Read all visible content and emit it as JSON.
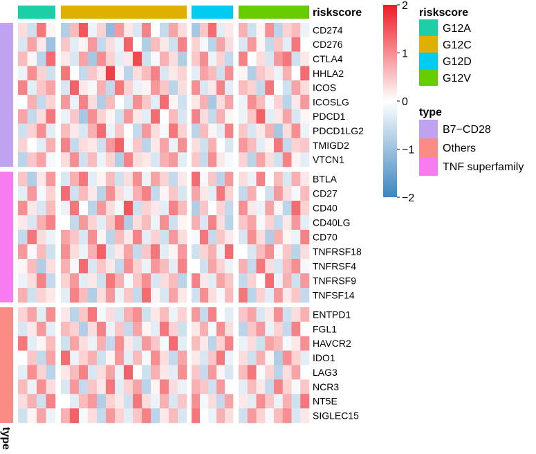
{
  "chart_data": {
    "type": "heatmap",
    "title": "",
    "column_annotation": {
      "name": "riskscore",
      "groups": [
        {
          "label": "G12A",
          "color": "#1ccfa6",
          "n_columns": 4
        },
        {
          "label": "G12C",
          "color": "#e0b000",
          "n_columns": 14
        },
        {
          "label": "G12D",
          "color": "#00ccf0",
          "n_columns": 5
        },
        {
          "label": "G12V",
          "color": "#66cc00",
          "n_columns": 8
        }
      ]
    },
    "row_annotation": {
      "name": "type",
      "groups": [
        {
          "label": "B7−CD28",
          "color": "#bfa2f0",
          "genes": [
            "CD274",
            "CD276",
            "CTLA4",
            "HHLA2",
            "ICOS",
            "ICOSLG",
            "PDCD1",
            "PDCD1LG2",
            "TMIGD2",
            "VTCN1"
          ]
        },
        {
          "label": "TNF superfamily",
          "color": "#f77cef",
          "genes": [
            "BTLA",
            "CD27",
            "CD40",
            "CD40LG",
            "CD70",
            "TNFRSF18",
            "TNFRSF4",
            "TNFRSF9",
            "TNFSF14"
          ]
        },
        {
          "label": "Others",
          "color": "#fa8c84",
          "genes": [
            "ENTPD1",
            "FGL1",
            "HAVCR2",
            "IDO1",
            "LAG3",
            "NCR3",
            "NT5E",
            "SIGLEC15"
          ]
        }
      ],
      "legend_order": [
        "B7−CD28",
        "Others",
        "TNF superfamily"
      ]
    },
    "colorbar": {
      "min": -2,
      "max": 2,
      "ticks": [
        2,
        1,
        0,
        -1,
        -2
      ],
      "tick_labels": [
        "2",
        "1",
        "0",
        "−1",
        "−2"
      ],
      "colors": [
        "#3b85bf",
        "#ffffff",
        "#ee1c24"
      ]
    },
    "values": [
      [
        0.3,
        -0.5,
        1.2,
        0.1,
        -0.8,
        0.6,
        1.5,
        -0.2,
        0.4,
        -1.1,
        0.9,
        0.2,
        -0.4,
        1.1,
        0.0,
        -0.6,
        0.8,
        0.3,
        -0.9,
        0.5,
        1.3,
        -0.3,
        0.2,
        0.7,
        -0.5,
        0.1,
        1.0,
        -0.7,
        0.4,
        0.6,
        -0.2
      ],
      [
        -0.4,
        0.8,
        0.2,
        -1.0,
        0.5,
        -0.3,
        0.1,
        0.9,
        -0.6,
        0.3,
        -0.2,
        1.4,
        0.0,
        -0.8,
        0.6,
        0.2,
        -0.5,
        1.1,
        0.4,
        -0.1,
        -0.7,
        0.8,
        0.3,
        -0.4,
        0.9,
        0.1,
        -0.6,
        0.5,
        -0.3,
        1.2,
        0.0
      ],
      [
        0.6,
        0.1,
        -0.7,
        1.3,
        0.2,
        -0.4,
        0.8,
        -0.9,
        1.0,
        0.4,
        -0.3,
        0.2,
        1.6,
        -0.5,
        -0.1,
        0.7,
        0.3,
        -0.8,
        0.5,
        1.0,
        -0.2,
        0.4,
        -0.6,
        1.1,
        0.0,
        0.3,
        -0.4,
        0.9,
        1.2,
        -0.5,
        0.2
      ],
      [
        -0.2,
        1.0,
        0.4,
        -0.5,
        1.2,
        0.0,
        -0.6,
        0.5,
        0.2,
        1.7,
        0.1,
        -0.7,
        0.3,
        0.6,
        1.1,
        -0.4,
        0.2,
        0.4,
        -0.3,
        0.8,
        0.6,
        -0.5,
        1.0,
        0.1,
        -0.8,
        0.5,
        0.3,
        -0.2,
        0.7,
        0.0,
        1.3
      ],
      [
        1.1,
        -0.3,
        0.5,
        0.8,
        -0.4,
        1.4,
        0.2,
        -0.1,
        0.7,
        -0.6,
        1.2,
        0.4,
        -0.2,
        0.1,
        0.9,
        0.5,
        -0.7,
        0.3,
        1.0,
        -0.4,
        0.2,
        1.1,
        -0.3,
        0.6,
        0.4,
        -0.6,
        1.2,
        0.0,
        -0.5,
        0.8,
        0.3
      ],
      [
        0.0,
        0.7,
        -0.6,
        0.4,
        0.9,
        -0.2,
        1.1,
        0.3,
        -0.8,
        0.6,
        0.0,
        -0.4,
        1.0,
        0.5,
        -0.3,
        1.3,
        0.1,
        -0.5,
        0.2,
        0.7,
        -0.9,
        0.3,
        0.8,
        -0.2,
        1.0,
        0.6,
        -0.1,
        0.4,
        -0.7,
        0.2,
        0.9
      ],
      [
        0.8,
        -0.6,
        0.3,
        1.2,
        -0.2,
        0.5,
        -0.9,
        1.0,
        0.4,
        0.1,
        -0.5,
        0.9,
        0.2,
        -0.3,
        1.3,
        0.0,
        0.6,
        -0.4,
        1.1,
        0.3,
        -0.6,
        0.7,
        0.1,
        -0.2,
        0.5,
        1.4,
        -0.3,
        0.2,
        0.8,
        -0.4,
        0.1
      ],
      [
        -0.5,
        0.4,
        1.0,
        -0.3,
        0.6,
        0.2,
        -0.4,
        0.7,
        1.3,
        -0.2,
        0.5,
        0.0,
        -0.6,
        0.9,
        0.3,
        -0.1,
        1.2,
        0.4,
        -0.7,
        0.6,
        0.1,
        -0.3,
        1.1,
        0.5,
        -0.4,
        0.2,
        0.7,
        -0.9,
        0.3,
        1.0,
        -0.2
      ],
      [
        0.4,
        0.0,
        -0.3,
        0.7,
        1.1,
        -0.6,
        0.3,
        0.2,
        -0.5,
        0.9,
        1.4,
        -0.1,
        0.5,
        -0.7,
        0.2,
        0.8,
        -0.2,
        1.0,
        0.3,
        -0.5,
        0.7,
        0.0,
        -0.4,
        0.9,
        0.6,
        -0.3,
        0.1,
        1.2,
        -0.6,
        0.4,
        0.5
      ],
      [
        -0.7,
        0.5,
        0.8,
        -0.1,
        0.3,
        1.0,
        -0.5,
        0.6,
        -0.2,
        0.4,
        -0.8,
        1.1,
        0.3,
        0.2,
        -0.4,
        0.7,
        0.9,
        -0.3,
        0.5,
        -0.6,
        1.0,
        0.2,
        -0.1,
        0.4,
        -0.7,
        0.8,
        0.3,
        -0.5,
        1.1,
        0.1,
        -0.3
      ],
      [
        0.5,
        -0.8,
        0.2,
        0.9,
        -0.4,
        0.7,
        1.2,
        -0.3,
        0.1,
        0.6,
        -0.5,
        0.3,
        1.0,
        -0.2,
        0.8,
        0.4,
        -0.6,
        0.2,
        1.3,
        -0.1,
        0.5,
        -0.7,
        0.9,
        0.3,
        -0.2,
        1.1,
        0.0,
        0.6,
        -0.4,
        0.7,
        0.2
      ],
      [
        -0.3,
        0.9,
        -0.1,
        0.4,
        1.3,
        -0.5,
        0.6,
        0.2,
        -0.7,
        1.0,
        0.3,
        -0.2,
        0.7,
        1.1,
        -0.6,
        0.1,
        0.5,
        -0.4,
        0.8,
        0.2,
        -0.3,
        1.2,
        0.4,
        -0.6,
        0.7,
        0.0,
        -0.5,
        0.9,
        0.3,
        -0.1,
        0.6
      ],
      [
        1.0,
        0.2,
        -0.4,
        0.6,
        -0.2,
        1.2,
        0.0,
        -0.7,
        0.9,
        0.3,
        -0.1,
        1.5,
        -0.5,
        0.4,
        0.2,
        -0.3,
        1.1,
        0.6,
        -0.8,
        0.5,
        0.0,
        0.4,
        -0.6,
        1.0,
        0.2,
        -0.2,
        0.8,
        0.1,
        -0.7,
        1.3,
        0.4
      ],
      [
        0.2,
        -0.4,
        0.7,
        1.1,
        0.0,
        -0.6,
        0.9,
        0.4,
        -0.3,
        0.5,
        1.2,
        -0.8,
        0.3,
        0.6,
        -0.2,
        1.0,
        -0.5,
        0.1,
        0.7,
        -0.4,
        1.1,
        0.3,
        -0.7,
        0.5,
        0.8,
        -0.1,
        0.4,
        -0.6,
        0.2,
        0.9,
        -0.3
      ],
      [
        -0.6,
        1.2,
        0.3,
        -0.2,
        0.8,
        0.5,
        -0.4,
        1.0,
        0.1,
        -0.7,
        0.6,
        0.2,
        1.1,
        -0.3,
        0.4,
        -0.5,
        0.9,
        0.3,
        -0.1,
        1.2,
        -0.6,
        0.5,
        0.2,
        -0.4,
        1.0,
        0.3,
        -0.8,
        0.7,
        0.1,
        -0.2,
        1.1
      ],
      [
        0.9,
        -0.1,
        0.6,
        -0.5,
        1.0,
        0.3,
        -0.2,
        0.7,
        1.4,
        -0.4,
        0.2,
        0.8,
        -0.6,
        0.5,
        1.2,
        -0.3,
        0.1,
        0.9,
        -0.5,
        0.4,
        0.7,
        -0.2,
        1.3,
        0.0,
        -0.4,
        0.6,
        1.0,
        -0.1,
        0.5,
        -0.7,
        0.3
      ],
      [
        0.1,
        0.6,
        -0.8,
        0.3,
        0.7,
        -0.1,
        1.3,
        -0.4,
        0.5,
        0.2,
        -0.6,
        1.0,
        0.4,
        -0.2,
        0.9,
        0.6,
        -0.3,
        1.1,
        0.0,
        -0.5,
        0.8,
        0.4,
        -0.2,
        0.7,
        -0.6,
        1.2,
        0.3,
        -0.4,
        0.6,
        1.0,
        -0.1
      ],
      [
        -0.2,
        0.3,
        1.1,
        -0.6,
        0.4,
        0.9,
        -0.3,
        0.2,
        -0.5,
        1.2,
        0.7,
        -0.1,
        0.5,
        1.0,
        -0.4,
        0.3,
        0.6,
        -0.7,
        1.1,
        0.2,
        -0.3,
        0.8,
        0.5,
        -0.6,
        0.4,
        0.0,
        1.3,
        -0.2,
        0.7,
        -0.5,
        0.9
      ],
      [
        0.7,
        -0.5,
        0.4,
        0.2,
        -0.3,
        1.1,
        0.6,
        -0.8,
        0.3,
        0.9,
        -0.2,
        0.5,
        -0.6,
        1.3,
        0.1,
        -0.4,
        0.8,
        0.2,
        -0.5,
        1.0,
        0.3,
        -0.1,
        0.6,
        1.2,
        -0.7,
        0.4,
        -0.3,
        0.9,
        0.2,
        0.5,
        -0.6
      ],
      [
        0.4,
        0.8,
        -0.3,
        1.0,
        0.2,
        -0.7,
        0.5,
        1.2,
        -0.1,
        0.3,
        -0.4,
        0.7,
        1.0,
        -0.5,
        0.2,
        0.6,
        -0.2,
        0.4,
        0.9,
        -0.6,
        1.1,
        0.0,
        -0.3,
        0.5,
        0.8,
        -0.4,
        0.2,
        1.0,
        -0.5,
        0.3,
        0.7
      ],
      [
        -0.4,
        0.2,
        0.9,
        -0.3,
        0.6,
        0.4,
        -0.8,
        0.3,
        1.1,
        -0.2,
        0.5,
        -0.6,
        0.8,
        0.1,
        -0.3,
        1.2,
        0.4,
        -0.5,
        0.2,
        0.7,
        -0.1,
        1.0,
        0.3,
        -0.7,
        0.5,
        0.9,
        -0.2,
        0.4,
        -0.6,
        1.1,
        0.0
      ],
      [
        1.2,
        -0.3,
        0.1,
        0.6,
        -0.5,
        0.8,
        0.3,
        -0.2,
        0.7,
        -0.6,
        1.0,
        0.2,
        -0.4,
        0.9,
        0.5,
        -0.1,
        1.3,
        -0.3,
        0.6,
        0.2,
        -0.7,
        0.4,
        1.1,
        -0.2,
        0.3,
        -0.5,
        0.8,
        0.6,
        -0.1,
        0.2,
        1.0
      ],
      [
        0.0,
        0.5,
        -0.6,
        0.8,
        1.3,
        -0.2,
        0.4,
        0.7,
        -0.5,
        0.1,
        0.9,
        -0.3,
        0.6,
        -0.1,
        1.0,
        0.3,
        -0.6,
        0.8,
        0.2,
        -0.4,
        0.5,
        1.2,
        -0.2,
        0.3,
        -0.5,
        0.7,
        0.1,
        -0.8,
        1.0,
        0.4,
        -0.3
      ],
      [
        -0.3,
        1.0,
        0.4,
        -0.7,
        0.2,
        0.6,
        1.1,
        -0.4,
        0.3,
        0.8,
        -0.2,
        1.4,
        0.0,
        -0.5,
        0.7,
        0.2,
        -0.3,
        1.0,
        0.5,
        -0.6,
        0.9,
        0.1,
        -0.4,
        0.6,
        1.2,
        -0.1,
        0.4,
        -0.7,
        0.3,
        0.8,
        0.0
      ],
      [
        0.6,
        -0.2,
        1.0,
        0.3,
        -0.4,
        0.9,
        -0.6,
        0.5,
        0.2,
        1.2,
        -0.3,
        0.4,
        0.8,
        -0.7,
        0.1,
        1.1,
        0.3,
        -0.2,
        0.7,
        0.5,
        -0.5,
        0.9,
        0.0,
        -0.3,
        0.6,
        0.2,
        -0.6,
        1.1,
        0.4,
        -0.1,
        0.5
      ],
      [
        0.3,
        0.7,
        -0.5,
        1.1,
        0.0,
        -0.3,
        0.6,
        0.9,
        -0.8,
        0.4,
        0.2,
        -0.5,
        1.2,
        0.3,
        -0.2,
        0.7,
        -0.4,
        0.5,
        1.0,
        -0.1,
        0.3,
        -0.6,
        0.8,
        0.2,
        -0.3,
        1.0,
        0.5,
        -0.2,
        0.7,
        -0.5,
        1.2
      ],
      [
        -0.5,
        0.1,
        0.8,
        -0.2,
        0.7,
        1.4,
        -0.1,
        0.3,
        -0.6,
        0.9,
        0.4,
        -0.3,
        0.5,
        1.1,
        -0.7,
        0.2,
        0.6,
        -0.4,
        1.2,
        0.0,
        -0.2,
        0.7,
        0.3,
        -0.5,
        0.9,
        0.4,
        -0.1,
        0.6,
        1.0,
        -0.4,
        0.2
      ]
    ]
  }
}
